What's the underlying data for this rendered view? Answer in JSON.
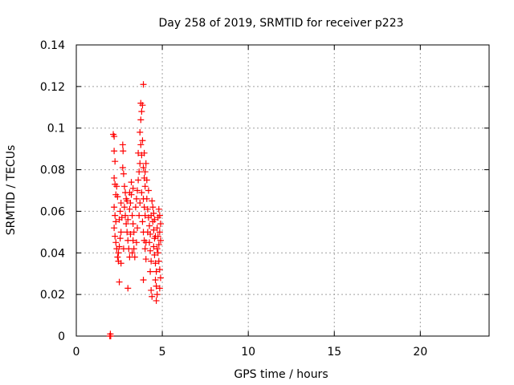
{
  "chart_data": {
    "type": "scatter",
    "title": "Day 258 of 2019, SRMTID for receiver p223",
    "xlabel": "GPS time / hours",
    "ylabel": "SRMTID / TECUs",
    "xlim": [
      0,
      24
    ],
    "ylim": [
      0,
      0.14
    ],
    "x_ticks": [
      0,
      5,
      10,
      15,
      20
    ],
    "x_tick_labels": [
      "0",
      "5",
      "10",
      "15",
      "20"
    ],
    "y_ticks": [
      0,
      0.02,
      0.04,
      0.06,
      0.08,
      0.1,
      0.12,
      0.14
    ],
    "y_tick_labels": [
      "0",
      "0.02",
      "0.04",
      "0.06",
      "0.08",
      "0.1",
      "0.12",
      "0.14"
    ],
    "grid": true,
    "marker": "plus",
    "color": "#ff0000",
    "series": [
      {
        "name": "SRMTID",
        "points": [
          [
            1.95,
            0.0
          ],
          [
            2.0,
            0.0
          ],
          [
            1.98,
            0.001
          ],
          [
            2.15,
            0.097
          ],
          [
            2.2,
            0.096
          ],
          [
            2.2,
            0.089
          ],
          [
            2.25,
            0.084
          ],
          [
            2.2,
            0.076
          ],
          [
            2.25,
            0.073
          ],
          [
            2.3,
            0.068
          ],
          [
            2.2,
            0.062
          ],
          [
            2.25,
            0.058
          ],
          [
            2.3,
            0.055
          ],
          [
            2.2,
            0.052
          ],
          [
            2.25,
            0.048
          ],
          [
            2.3,
            0.045
          ],
          [
            2.35,
            0.042
          ],
          [
            2.4,
            0.038
          ],
          [
            2.45,
            0.036
          ],
          [
            2.5,
            0.043
          ],
          [
            2.55,
            0.047
          ],
          [
            2.6,
            0.05
          ],
          [
            2.5,
            0.056
          ],
          [
            2.55,
            0.06
          ],
          [
            2.6,
            0.064
          ],
          [
            2.5,
            0.026
          ],
          [
            2.7,
            0.092
          ],
          [
            2.72,
            0.089
          ],
          [
            2.7,
            0.081
          ],
          [
            2.75,
            0.078
          ],
          [
            2.8,
            0.072
          ],
          [
            2.85,
            0.069
          ],
          [
            2.9,
            0.066
          ],
          [
            2.8,
            0.062
          ],
          [
            2.85,
            0.058
          ],
          [
            2.9,
            0.054
          ],
          [
            2.95,
            0.05
          ],
          [
            3.0,
            0.046
          ],
          [
            3.05,
            0.042
          ],
          [
            3.1,
            0.038
          ],
          [
            3.0,
            0.023
          ],
          [
            3.1,
            0.061
          ],
          [
            3.15,
            0.064
          ],
          [
            3.2,
            0.068
          ],
          [
            3.25,
            0.058
          ],
          [
            3.3,
            0.054
          ],
          [
            3.35,
            0.05
          ],
          [
            3.3,
            0.046
          ],
          [
            3.35,
            0.042
          ],
          [
            3.4,
            0.038
          ],
          [
            3.45,
            0.062
          ],
          [
            3.5,
            0.066
          ],
          [
            3.55,
            0.07
          ],
          [
            3.6,
            0.075
          ],
          [
            3.65,
            0.079
          ],
          [
            3.7,
            0.083
          ],
          [
            3.6,
            0.088
          ],
          [
            3.75,
            0.092
          ],
          [
            3.7,
            0.098
          ],
          [
            3.75,
            0.104
          ],
          [
            3.8,
            0.108
          ],
          [
            3.75,
            0.112
          ],
          [
            3.85,
            0.111
          ],
          [
            3.9,
            0.121
          ],
          [
            3.85,
            0.094
          ],
          [
            3.8,
            0.087
          ],
          [
            3.9,
            0.081
          ],
          [
            3.95,
            0.076
          ],
          [
            4.0,
            0.072
          ],
          [
            3.9,
            0.066
          ],
          [
            3.95,
            0.062
          ],
          [
            4.0,
            0.058
          ],
          [
            3.85,
            0.055
          ],
          [
            3.9,
            0.05
          ],
          [
            3.95,
            0.046
          ],
          [
            4.0,
            0.042
          ],
          [
            3.9,
            0.027
          ],
          [
            4.05,
            0.037
          ],
          [
            4.1,
            0.066
          ],
          [
            4.15,
            0.061
          ],
          [
            4.2,
            0.057
          ],
          [
            4.25,
            0.053
          ],
          [
            4.3,
            0.049
          ],
          [
            4.25,
            0.045
          ],
          [
            4.3,
            0.041
          ],
          [
            4.35,
            0.036
          ],
          [
            4.3,
            0.031
          ],
          [
            4.35,
            0.022
          ],
          [
            4.4,
            0.019
          ],
          [
            4.45,
            0.055
          ],
          [
            4.5,
            0.051
          ],
          [
            4.55,
            0.047
          ],
          [
            4.5,
            0.043
          ],
          [
            4.55,
            0.039
          ],
          [
            4.6,
            0.035
          ],
          [
            4.65,
            0.031
          ],
          [
            4.6,
            0.027
          ],
          [
            4.65,
            0.024
          ],
          [
            4.7,
            0.02
          ],
          [
            4.65,
            0.017
          ],
          [
            4.7,
            0.052
          ],
          [
            4.75,
            0.048
          ],
          [
            4.8,
            0.044
          ],
          [
            4.75,
            0.04
          ],
          [
            4.8,
            0.036
          ],
          [
            4.85,
            0.032
          ],
          [
            4.9,
            0.028
          ],
          [
            4.85,
            0.023
          ],
          [
            4.8,
            0.061
          ],
          [
            4.85,
            0.058
          ],
          [
            4.9,
            0.054
          ],
          [
            4.85,
            0.05
          ],
          [
            4.9,
            0.046
          ],
          [
            4.75,
            0.057
          ],
          [
            4.5,
            0.059
          ],
          [
            4.4,
            0.065
          ],
          [
            4.2,
            0.07
          ],
          [
            4.1,
            0.075
          ],
          [
            3.3,
            0.071
          ],
          [
            3.2,
            0.074
          ],
          [
            3.1,
            0.069
          ],
          [
            2.95,
            0.065
          ],
          [
            2.65,
            0.057
          ],
          [
            2.4,
            0.067
          ],
          [
            2.35,
            0.072
          ],
          [
            2.45,
            0.04
          ],
          [
            2.6,
            0.035
          ],
          [
            2.75,
            0.042
          ],
          [
            3.0,
            0.056
          ],
          [
            3.15,
            0.049
          ],
          [
            3.25,
            0.04
          ],
          [
            3.5,
            0.045
          ],
          [
            3.55,
            0.052
          ],
          [
            3.65,
            0.058
          ],
          [
            3.7,
            0.064
          ],
          [
            3.8,
            0.069
          ],
          [
            4.05,
            0.045
          ],
          [
            4.15,
            0.05
          ],
          [
            4.35,
            0.058
          ],
          [
            4.45,
            0.062
          ],
          [
            4.55,
            0.056
          ],
          [
            4.6,
            0.048
          ],
          [
            4.7,
            0.042
          ],
          [
            4.05,
            0.083
          ],
          [
            4.0,
            0.079
          ],
          [
            3.95,
            0.088
          ]
        ]
      }
    ]
  }
}
